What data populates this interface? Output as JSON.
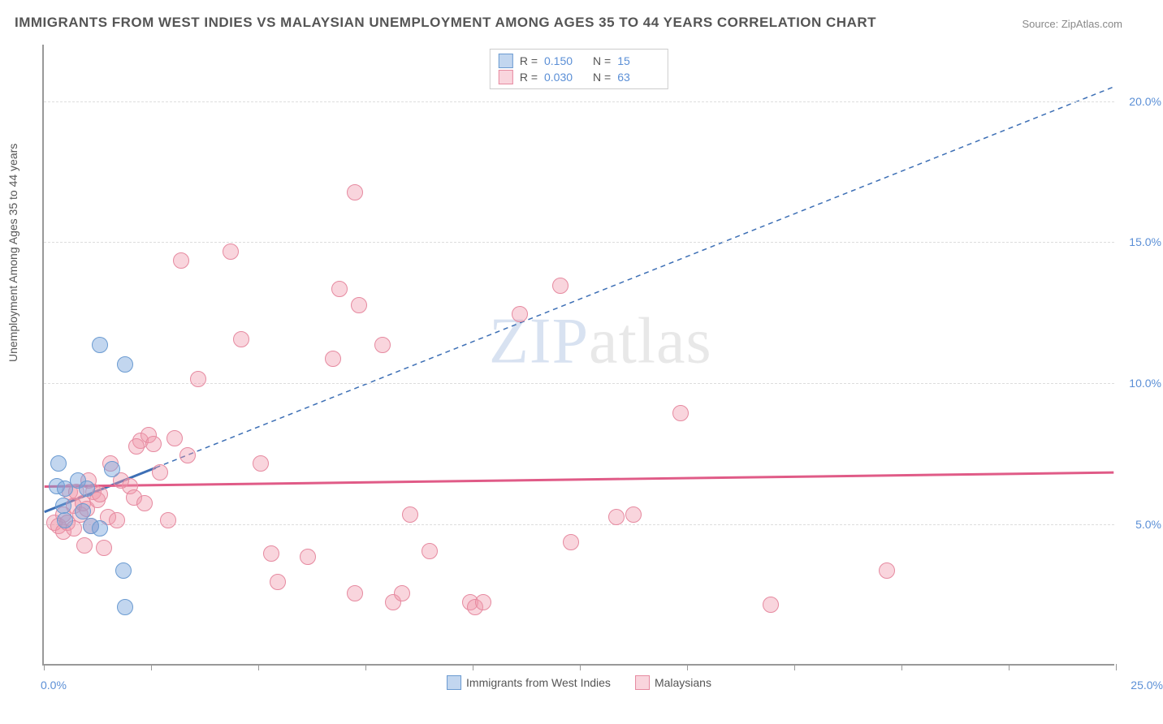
{
  "title": "IMMIGRANTS FROM WEST INDIES VS MALAYSIAN UNEMPLOYMENT AMONG AGES 35 TO 44 YEARS CORRELATION CHART",
  "source_label": "Source: ZipAtlas.com",
  "watermark": "ZIPatlas",
  "ylabel": "Unemployment Among Ages 35 to 44 years",
  "chart": {
    "type": "scatter",
    "xlim": [
      0,
      25
    ],
    "ylim": [
      0,
      22
    ],
    "xaxis_min_label": "0.0%",
    "xaxis_max_label": "25.0%",
    "xtick_positions": [
      0,
      2.5,
      5,
      7.5,
      10,
      12.5,
      15,
      17.5,
      20,
      22.5,
      25
    ],
    "ygrid": [
      {
        "v": 5,
        "label": "5.0%"
      },
      {
        "v": 10,
        "label": "10.0%"
      },
      {
        "v": 15,
        "label": "15.0%"
      },
      {
        "v": 20,
        "label": "20.0%"
      }
    ],
    "series": [
      {
        "name": "Immigrants from West Indies",
        "marker_fill": "rgba(120,165,220,0.45)",
        "marker_stroke": "#6b9bd1",
        "marker_size": 20,
        "R": "0.150",
        "N": "15",
        "trend": {
          "x1": 0,
          "y1": 5.4,
          "x2": 2.6,
          "y2": 7.0,
          "x3": 25,
          "y3": 20.5,
          "solid_end_x": 2.6
        },
        "line_color": "#3d6fb5",
        "points": [
          {
            "x": 0.3,
            "y": 6.3
          },
          {
            "x": 0.35,
            "y": 7.1
          },
          {
            "x": 0.5,
            "y": 6.2
          },
          {
            "x": 0.5,
            "y": 5.1
          },
          {
            "x": 0.8,
            "y": 6.5
          },
          {
            "x": 0.9,
            "y": 5.4
          },
          {
            "x": 1.0,
            "y": 6.2
          },
          {
            "x": 1.1,
            "y": 4.9
          },
          {
            "x": 1.3,
            "y": 4.8
          },
          {
            "x": 1.3,
            "y": 11.3
          },
          {
            "x": 1.6,
            "y": 6.9
          },
          {
            "x": 1.85,
            "y": 3.3
          },
          {
            "x": 1.9,
            "y": 10.6
          },
          {
            "x": 1.9,
            "y": 2.0
          },
          {
            "x": 0.45,
            "y": 5.6
          }
        ]
      },
      {
        "name": "Malaysians",
        "marker_fill": "rgba(240,150,170,0.40)",
        "marker_stroke": "#e68aa0",
        "marker_size": 20,
        "R": "0.030",
        "N": "63",
        "trend": {
          "x1": 0,
          "y1": 6.3,
          "x2": 25,
          "y2": 6.8,
          "solid_end_x": 25
        },
        "line_color": "#e05b87",
        "points": [
          {
            "x": 0.25,
            "y": 5.0
          },
          {
            "x": 0.35,
            "y": 4.9
          },
          {
            "x": 0.45,
            "y": 4.7
          },
          {
            "x": 0.45,
            "y": 5.3
          },
          {
            "x": 0.55,
            "y": 5.0
          },
          {
            "x": 0.6,
            "y": 6.1
          },
          {
            "x": 0.7,
            "y": 5.6
          },
          {
            "x": 0.7,
            "y": 4.8
          },
          {
            "x": 0.75,
            "y": 6.1
          },
          {
            "x": 0.85,
            "y": 5.3
          },
          {
            "x": 0.9,
            "y": 5.7
          },
          {
            "x": 0.95,
            "y": 4.2
          },
          {
            "x": 1.0,
            "y": 5.5
          },
          {
            "x": 1.05,
            "y": 6.5
          },
          {
            "x": 1.1,
            "y": 4.9
          },
          {
            "x": 1.15,
            "y": 6.1
          },
          {
            "x": 1.25,
            "y": 5.8
          },
          {
            "x": 1.3,
            "y": 6.0
          },
          {
            "x": 1.4,
            "y": 4.1
          },
          {
            "x": 1.5,
            "y": 5.2
          },
          {
            "x": 1.55,
            "y": 7.1
          },
          {
            "x": 1.7,
            "y": 5.1
          },
          {
            "x": 2.0,
            "y": 6.3
          },
          {
            "x": 2.1,
            "y": 5.9
          },
          {
            "x": 2.25,
            "y": 7.9
          },
          {
            "x": 2.35,
            "y": 5.7
          },
          {
            "x": 2.45,
            "y": 8.1
          },
          {
            "x": 2.55,
            "y": 7.8
          },
          {
            "x": 2.7,
            "y": 6.8
          },
          {
            "x": 2.9,
            "y": 5.1
          },
          {
            "x": 3.05,
            "y": 8.0
          },
          {
            "x": 3.2,
            "y": 14.3
          },
          {
            "x": 3.35,
            "y": 7.4
          },
          {
            "x": 3.6,
            "y": 10.1
          },
          {
            "x": 4.35,
            "y": 14.6
          },
          {
            "x": 4.6,
            "y": 11.5
          },
          {
            "x": 5.05,
            "y": 7.1
          },
          {
            "x": 5.3,
            "y": 3.9
          },
          {
            "x": 5.45,
            "y": 2.9
          },
          {
            "x": 6.15,
            "y": 3.8
          },
          {
            "x": 6.75,
            "y": 10.8
          },
          {
            "x": 6.9,
            "y": 13.3
          },
          {
            "x": 7.25,
            "y": 2.5
          },
          {
            "x": 7.25,
            "y": 16.7
          },
          {
            "x": 7.35,
            "y": 12.7
          },
          {
            "x": 7.9,
            "y": 11.3
          },
          {
            "x": 8.15,
            "y": 2.2
          },
          {
            "x": 8.35,
            "y": 2.5
          },
          {
            "x": 8.55,
            "y": 5.3
          },
          {
            "x": 9.0,
            "y": 4.0
          },
          {
            "x": 9.95,
            "y": 2.2
          },
          {
            "x": 10.05,
            "y": 2.0
          },
          {
            "x": 10.25,
            "y": 2.2
          },
          {
            "x": 11.1,
            "y": 12.4
          },
          {
            "x": 12.05,
            "y": 13.4
          },
          {
            "x": 12.3,
            "y": 4.3
          },
          {
            "x": 13.35,
            "y": 5.2
          },
          {
            "x": 13.75,
            "y": 5.3
          },
          {
            "x": 14.85,
            "y": 8.9
          },
          {
            "x": 16.95,
            "y": 2.1
          },
          {
            "x": 19.65,
            "y": 3.3
          },
          {
            "x": 2.15,
            "y": 7.7
          },
          {
            "x": 1.8,
            "y": 6.5
          }
        ]
      }
    ]
  },
  "colors": {
    "axis": "#999999",
    "grid": "#dddddd",
    "ticklabel": "#5b8fd6",
    "text": "#555555"
  }
}
